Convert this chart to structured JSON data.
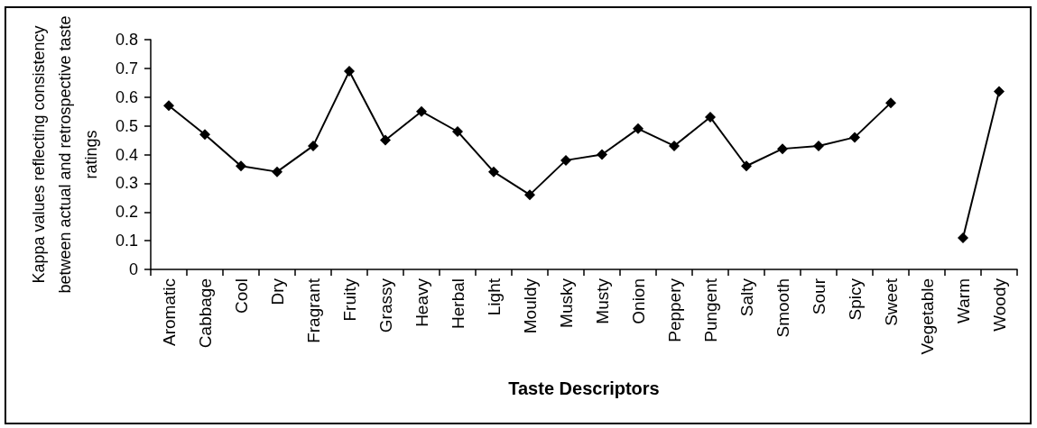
{
  "chart_data": {
    "type": "line",
    "xlabel": "Taste Descriptors",
    "ylabel": "Kappa values reflecting consistency between actual and retrospective taste ratings",
    "categories": [
      "Aromatic",
      "Cabbage",
      "Cool",
      "Dry",
      "Fragrant",
      "Fruity",
      "Grassy",
      "Heavy",
      "Herbal",
      "Light",
      "Mouldy",
      "Musky",
      "Musty",
      "Onion",
      "Peppery",
      "Pungent",
      "Salty",
      "Smooth",
      "Sour",
      "Spicy",
      "Sweet",
      "Vegetable",
      "Warm",
      "Woody"
    ],
    "values": [
      0.57,
      0.47,
      0.36,
      0.34,
      0.43,
      0.69,
      0.45,
      0.55,
      0.48,
      0.34,
      0.26,
      0.38,
      0.4,
      0.49,
      0.43,
      0.53,
      0.36,
      0.42,
      0.43,
      0.46,
      0.58,
      null,
      0.11,
      0.62
    ],
    "color": "#000000",
    "ylim": [
      0,
      0.8
    ],
    "yticks": [
      0,
      0.1,
      0.2,
      0.3,
      0.4,
      0.5,
      0.6,
      0.7,
      0.8
    ],
    "grid": false,
    "marker": "diamond",
    "line_style": "solid"
  }
}
